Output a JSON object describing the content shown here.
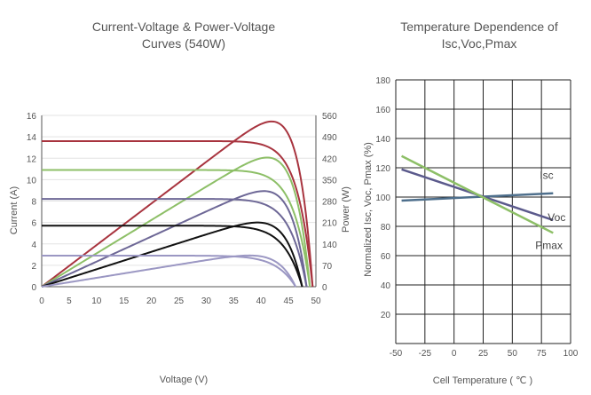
{
  "chart_data": [
    {
      "type": "line",
      "title_line1": "Current-Voltage & Power-Voltage",
      "title_line2": "Curves (540W)",
      "xlabel": "Voltage (V)",
      "ylabel": "Current (A)",
      "y2label": "Power (W)",
      "xlim": [
        0,
        50
      ],
      "ylim": [
        0,
        16
      ],
      "y2lim": [
        0,
        560
      ],
      "x_ticks": [
        "0",
        "5",
        "10",
        "15",
        "20",
        "25",
        "30",
        "35",
        "40",
        "45",
        "50"
      ],
      "y_ticks": [
        "0",
        "2",
        "4",
        "6",
        "8",
        "10",
        "12",
        "14",
        "16"
      ],
      "y2_ticks": [
        "0",
        "70",
        "140",
        "210",
        "280",
        "350",
        "420",
        "490",
        "560"
      ],
      "grid": "horizontal",
      "curves": [
        {
          "color": "#a8343f",
          "isc": 13.6,
          "voc": 49.4,
          "vmp": 41.1,
          "imp": 13.1
        },
        {
          "color": "#8dbf67",
          "isc": 10.9,
          "voc": 48.9,
          "vmp": 41.0,
          "imp": 10.3
        },
        {
          "color": "#6d6796",
          "isc": 8.2,
          "voc": 48.3,
          "vmp": 40.6,
          "imp": 7.7
        },
        {
          "color": "#111111",
          "isc": 5.7,
          "voc": 47.5,
          "vmp": 40.2,
          "imp": 5.2
        },
        {
          "color": "#9b97c3",
          "isc": 2.9,
          "voc": 46.3,
          "vmp": 39.0,
          "imp": 2.6
        }
      ]
    },
    {
      "type": "line",
      "title_line1": "Temperature Dependence of",
      "title_line2": "Isc,Voc,Pmax",
      "xlabel": "Cell Temperature ( ℃ )",
      "ylabel": "Normalized Isc, Voc, Pmax (%)",
      "xlim": [
        -50,
        100
      ],
      "ylim": [
        0,
        180
      ],
      "x_ticks": [
        "-50",
        "-25",
        "0",
        "25",
        "50",
        "75",
        "100"
      ],
      "y_ticks": [
        "20",
        "40",
        "60",
        "80",
        "100",
        "120",
        "140",
        "160",
        "180"
      ],
      "grid": "both",
      "series": [
        {
          "name": "Isc",
          "color": "#4e6f8c",
          "x": [
            -45,
            85
          ],
          "y": [
            97.6,
            102.6
          ]
        },
        {
          "name": "Voc",
          "color": "#5b5a8c",
          "x": [
            -45,
            85
          ],
          "y": [
            118.9,
            84.3
          ]
        },
        {
          "name": "Pmax",
          "color": "#8dbf67",
          "x": [
            -45,
            85
          ],
          "y": [
            128.0,
            75.5
          ]
        }
      ]
    }
  ]
}
